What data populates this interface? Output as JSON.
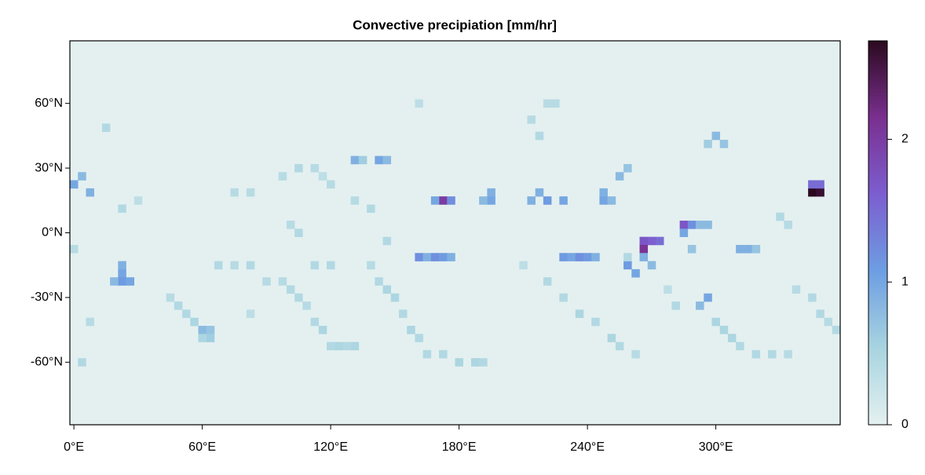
{
  "chart_data": {
    "type": "heatmap",
    "title": "Convective precipiation [mm/hr]",
    "xlim": [
      -1.875,
      358.125
    ],
    "ylim": [
      -89,
      89
    ],
    "xticks": [
      {
        "value": 0,
        "label": "0°E"
      },
      {
        "value": 60,
        "label": "60°E"
      },
      {
        "value": 120,
        "label": "120°E"
      },
      {
        "value": 180,
        "label": "180°E"
      },
      {
        "value": 240,
        "label": "240°E"
      },
      {
        "value": 300,
        "label": "300°E"
      }
    ],
    "yticks": [
      {
        "value": -60,
        "label": "-60°N"
      },
      {
        "value": -30,
        "label": "-30°N"
      },
      {
        "value": 0,
        "label": "0°N"
      },
      {
        "value": 30,
        "label": "30°N"
      },
      {
        "value": 60,
        "label": "60°N"
      }
    ],
    "cell_size": 3.75,
    "colormap": [
      "#e4f0f0",
      "#a8d4e0",
      "#6d9ee2",
      "#7c5ed0",
      "#7a2f8f",
      "#2b0a1f"
    ],
    "clim": [
      0,
      2.69
    ],
    "cbar_ticks": [
      0,
      1,
      2
    ],
    "x": [
      345,
      348.75,
      345,
      348.75,
      172.5,
      168.75,
      176.25,
      3.75,
      0,
      7.5,
      22.5,
      22.5,
      22.5,
      26.25,
      18.75,
      131.25,
      135,
      142.5,
      146.25,
      195,
      195,
      191.25,
      217.5,
      221.25,
      213.75,
      228.75,
      247.5,
      247.5,
      251.25,
      255,
      258.75,
      161.25,
      165,
      168.75,
      172.5,
      176.25,
      228.75,
      232.5,
      236.25,
      240,
      243.75,
      266.25,
      270,
      273.75,
      266.25,
      266.25,
      258.75,
      262.5,
      270,
      285,
      288.75,
      292.5,
      296.25,
      285,
      288.75,
      311.25,
      315,
      318.75,
      296.25,
      292.5,
      300,
      303.75,
      296.25,
      60,
      63.75,
      63.75,
      45,
      48.75,
      52.5,
      56.25,
      60,
      97.5,
      101.25,
      105,
      108.75,
      112.5,
      116.25,
      120,
      123.75,
      127.5,
      131.25,
      138.75,
      142.5,
      146.25,
      150,
      153.75,
      157.5,
      161.25,
      165,
      172.5,
      180,
      187.5,
      191.25,
      221.25,
      228.75,
      236.25,
      243.75,
      251.25,
      255,
      262.5,
      281.25,
      300,
      303.75,
      307.5,
      311.25,
      318.75,
      326.25,
      333.75,
      337.5,
      345,
      348.75,
      352.5,
      356.25,
      97.5,
      105,
      112.5,
      116.25,
      120,
      131.25,
      138.75,
      146.25,
      105,
      101.25,
      75,
      82.5,
      67.5,
      75,
      82.5,
      112.5,
      120,
      210,
      258.75,
      277.5,
      333.75,
      330,
      22.5,
      30,
      0,
      7.5,
      3.75,
      82.5,
      90,
      225,
      221.25,
      213.75,
      217.5,
      161.25,
      15
    ],
    "y": [
      18.75,
      18.75,
      22.5,
      22.5,
      15,
      15,
      15,
      26.25,
      22.5,
      18.75,
      -15,
      -18.75,
      -22.5,
      -22.5,
      -22.5,
      33.75,
      33.75,
      33.75,
      33.75,
      18.75,
      15,
      15,
      18.75,
      15,
      15,
      15,
      18.75,
      15,
      15,
      26.25,
      30,
      -11.25,
      -11.25,
      -11.25,
      -11.25,
      -11.25,
      -11.25,
      -11.25,
      -11.25,
      -11.25,
      -11.25,
      -3.75,
      -3.75,
      -3.75,
      -7.5,
      -11.25,
      -15,
      -18.75,
      -15,
      3.75,
      3.75,
      3.75,
      3.75,
      0,
      -7.5,
      -7.5,
      -7.5,
      -7.5,
      -30,
      -33.75,
      45,
      41.25,
      41.25,
      -45,
      -45,
      -48.75,
      -30,
      -33.75,
      -37.5,
      -41.25,
      -48.75,
      -22.5,
      -26.25,
      -30,
      -33.75,
      -41.25,
      -45,
      -52.5,
      -52.5,
      -52.5,
      -52.5,
      -15,
      -22.5,
      -26.25,
      -30,
      -37.5,
      -45,
      -48.75,
      -56.25,
      -56.25,
      -60,
      -60,
      -60,
      -22.5,
      -30,
      -37.5,
      -41.25,
      -48.75,
      -52.5,
      -56.25,
      -33.75,
      -41.25,
      -45,
      -48.75,
      -52.5,
      -56.25,
      -56.25,
      -56.25,
      -26.25,
      -30,
      -37.5,
      -41.25,
      -45,
      26.25,
      30,
      30,
      26.25,
      22.5,
      15,
      11.25,
      -3.75,
      0,
      3.75,
      18.75,
      18.75,
      -15,
      -15,
      -15,
      -15,
      -15,
      -15,
      -11.25,
      -26.25,
      3.75,
      7.5,
      11.25,
      15,
      -7.5,
      -41.25,
      -60,
      -37.5,
      -22.5,
      60,
      60,
      52.5,
      45,
      60,
      48.75
    ],
    "values": [
      2.69,
      2.6,
      1.5,
      1.5,
      2.0,
      1.0,
      1.2,
      0.8,
      1.0,
      0.9,
      0.9,
      1.0,
      1.1,
      1.0,
      0.8,
      0.9,
      0.6,
      1.0,
      0.8,
      0.9,
      1.0,
      0.8,
      0.9,
      1.1,
      0.9,
      1.0,
      0.9,
      1.0,
      0.8,
      0.8,
      0.7,
      1.2,
      0.9,
      1.2,
      1.1,
      0.9,
      1.1,
      1.0,
      1.2,
      1.1,
      0.9,
      1.7,
      1.6,
      1.5,
      2.1,
      0.9,
      1.1,
      1.0,
      0.8,
      1.7,
      1.2,
      0.8,
      0.8,
      1.0,
      0.7,
      0.9,
      0.9,
      0.7,
      1.0,
      0.8,
      0.8,
      0.7,
      0.6,
      0.8,
      0.7,
      0.6,
      0.4,
      0.45,
      0.45,
      0.5,
      0.5,
      0.4,
      0.45,
      0.45,
      0.4,
      0.45,
      0.5,
      0.45,
      0.5,
      0.45,
      0.5,
      0.4,
      0.45,
      0.5,
      0.5,
      0.45,
      0.5,
      0.45,
      0.45,
      0.45,
      0.5,
      0.5,
      0.45,
      0.45,
      0.45,
      0.5,
      0.45,
      0.5,
      0.45,
      0.4,
      0.45,
      0.5,
      0.5,
      0.5,
      0.45,
      0.45,
      0.45,
      0.4,
      0.4,
      0.45,
      0.45,
      0.4,
      0.45,
      0.4,
      0.45,
      0.4,
      0.35,
      0.4,
      0.4,
      0.45,
      0.45,
      0.45,
      0.4,
      0.4,
      0.4,
      0.45,
      0.4,
      0.45,
      0.45,
      0.45,
      0.35,
      0.45,
      0.35,
      0.4,
      0.45,
      0.45,
      0.35,
      0.4,
      0.4,
      0.45,
      0.35,
      0.4,
      0.4,
      0.4,
      0.4,
      0.45,
      0.35,
      0.45
    ]
  }
}
